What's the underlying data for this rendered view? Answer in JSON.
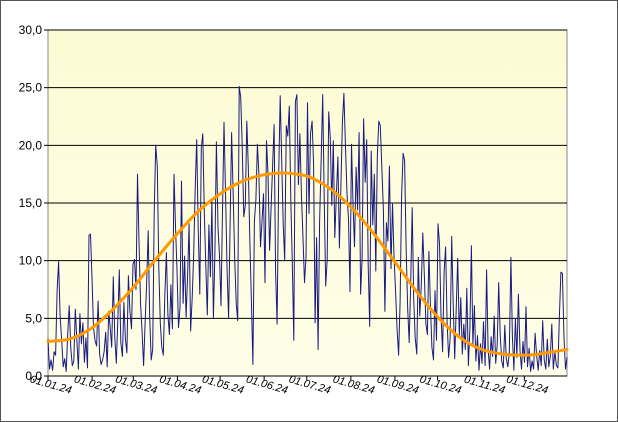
{
  "chart_data": {
    "type": "line",
    "title": "",
    "xlabel": "",
    "ylabel": "",
    "ylim": [
      0,
      30
    ],
    "y_ticks": [
      0,
      5,
      10,
      15,
      20,
      25,
      30
    ],
    "y_tick_labels": [
      "0,0",
      "5,0",
      "10,0",
      "15,0",
      "20,0",
      "25,0",
      "30,0"
    ],
    "x_tick_labels": [
      "01.01.24",
      "01.02.24",
      "01.03.24",
      "01.04.24",
      "01.05.24",
      "01.06.24",
      "01.07.24",
      "01.08.24",
      "01.09.24",
      "01.10.24",
      "01.11.24",
      "01.12.24"
    ],
    "x_tick_days": [
      0,
      31,
      60,
      91,
      121,
      152,
      182,
      213,
      244,
      274,
      305,
      335
    ],
    "xlim_days": [
      0,
      365
    ],
    "grid": "horizontal",
    "legend": "none",
    "series": [
      {
        "color": "#1a1a80",
        "style": "daily",
        "values": [
          3.2,
          0.6,
          1.4,
          0.5,
          2.1,
          1.8,
          7.4,
          9.9,
          5.2,
          3.1,
          0.8,
          1.5,
          0.4,
          3.6,
          6.1,
          2.4,
          0.9,
          1.3,
          5.8,
          3.2,
          0.6,
          5.4,
          2.8,
          4.6,
          1.2,
          3.3,
          0.7,
          12.2,
          12.3,
          8.5,
          4.2,
          3.1,
          2.6,
          6.5,
          1.9,
          1.0,
          1.4,
          2.1,
          3.8,
          0.8,
          5.6,
          4.2,
          2.5,
          8.6,
          3.3,
          1.1,
          4.8,
          9.2,
          2.9,
          1.7,
          6.4,
          3.2,
          2.0,
          8.7,
          5.6,
          4.1,
          9.7,
          10.1,
          7.5,
          17.5,
          11.3,
          6.2,
          3.8,
          0.9,
          4.6,
          7.9,
          12.6,
          5.1,
          1.4,
          2.3,
          14.1,
          20.0,
          18.2,
          9.4,
          4.6,
          2.5,
          1.8,
          7.2,
          10.7,
          5.3,
          3.6,
          7.9,
          4.1,
          17.5,
          13.0,
          9.2,
          4.2,
          5.9,
          16.9,
          6.3,
          10.4,
          5.1,
          8.7,
          13.2,
          3.9,
          6.8,
          10.6,
          16.3,
          20.5,
          12.8,
          7.1,
          19.8,
          21.0,
          14.2,
          9.6,
          5.3,
          13.1,
          8.6,
          15.2,
          5.0,
          10.7,
          20.3,
          12.9,
          10.4,
          6.1,
          14.3,
          22.0,
          15.6,
          9.1,
          5.0,
          13.1,
          21.1,
          16.0,
          10.2,
          6.3,
          4.8,
          25.1,
          24.2,
          20.0,
          13.8,
          14.8,
          22.1,
          18.1,
          11.9,
          6.5,
          1.0,
          13.4,
          15.3,
          20.1,
          17.5,
          11.2,
          13.4,
          15.8,
          8.1,
          20.4,
          17.5,
          10.9,
          14.6,
          18.2,
          21.8,
          9.0,
          4.5,
          17.4,
          24.3,
          18.7,
          13.2,
          10.0,
          21.7,
          20.8,
          23.4,
          15.3,
          9.8,
          3.1,
          23.8,
          24.4,
          16.6,
          21.0,
          15.8,
          12.2,
          8.1,
          10.3,
          23.7,
          14.1,
          21.0,
          22.1,
          18.3,
          4.6,
          12.0,
          2.3,
          13.4,
          18.9,
          24.4,
          15.5,
          7.8,
          10.1,
          22.9,
          20.6,
          14.8,
          20.4,
          12.0,
          15.6,
          19.0,
          11.1,
          16.5,
          22.0,
          24.5,
          20.1,
          15.8,
          13.6,
          7.3,
          20.1,
          15.0,
          11.2,
          18.1,
          14.4,
          21.1,
          7.1,
          10.2,
          22.3,
          16.8,
          20.5,
          9.6,
          4.3,
          19.5,
          13.1,
          17.5,
          9.1,
          19.0,
          22.1,
          21.7,
          17.9,
          14.4,
          5.6,
          13.3,
          11.7,
          18.2,
          9.3,
          15.0,
          10.4,
          7.5,
          4.2,
          1.8,
          6.4,
          15.6,
          19.3,
          18.7,
          11.2,
          5.8,
          2.9,
          8.1,
          14.6,
          6.7,
          3.3,
          1.9,
          10.3,
          5.2,
          7.9,
          12.4,
          8.6,
          4.5,
          3.6,
          10.8,
          6.2,
          2.5,
          1.4,
          7.4,
          3.1,
          13.2,
          11.5,
          5.3,
          2.1,
          9.0,
          11.2,
          4.7,
          1.6,
          3.2,
          12.1,
          6.3,
          1.5,
          5.8,
          10.2,
          3.5,
          6.8,
          1.9,
          4.5,
          2.3,
          7.6,
          0.9,
          4.2,
          11.3,
          2.7,
          6.1,
          1.3,
          3.5,
          0.5,
          2.8,
          1.1,
          4.7,
          0.9,
          9.2,
          2.3,
          0.6,
          3.4,
          1.7,
          5.2,
          1.1,
          2.7,
          8.1,
          3.6,
          1.3,
          0.7,
          4.4,
          1.5,
          0.8,
          2.0,
          10.3,
          3.4,
          0.5,
          5.0,
          1.6,
          7.1,
          2.2,
          0.6,
          3.0,
          1.2,
          6.0,
          0.8,
          2.4,
          0.4,
          1.3,
          0.6,
          3.7,
          1.8,
          0.5,
          2.2,
          0.9,
          4.8,
          1.4,
          0.6,
          3.2,
          0.8,
          1.7,
          4.5,
          0.6,
          2.1,
          0.9,
          0.7,
          5.2,
          9.0,
          8.9,
          3.3,
          0.6,
          1.6
        ]
      },
      {
        "color": "#ff9900",
        "style": "smooth",
        "values_at_days": [
          0,
          15,
          30,
          45,
          60,
          75,
          90,
          105,
          120,
          135,
          150,
          165,
          175,
          185,
          200,
          215,
          230,
          245,
          260,
          275,
          290,
          305,
          320,
          335,
          345,
          355,
          365
        ],
        "values": [
          3.0,
          3.2,
          4.1,
          5.7,
          7.7,
          10.0,
          12.2,
          14.2,
          15.7,
          16.8,
          17.4,
          17.6,
          17.5,
          17.2,
          16.1,
          14.4,
          12.2,
          9.7,
          7.2,
          5.0,
          3.3,
          2.3,
          1.9,
          1.8,
          1.9,
          2.1,
          2.3
        ]
      }
    ]
  }
}
